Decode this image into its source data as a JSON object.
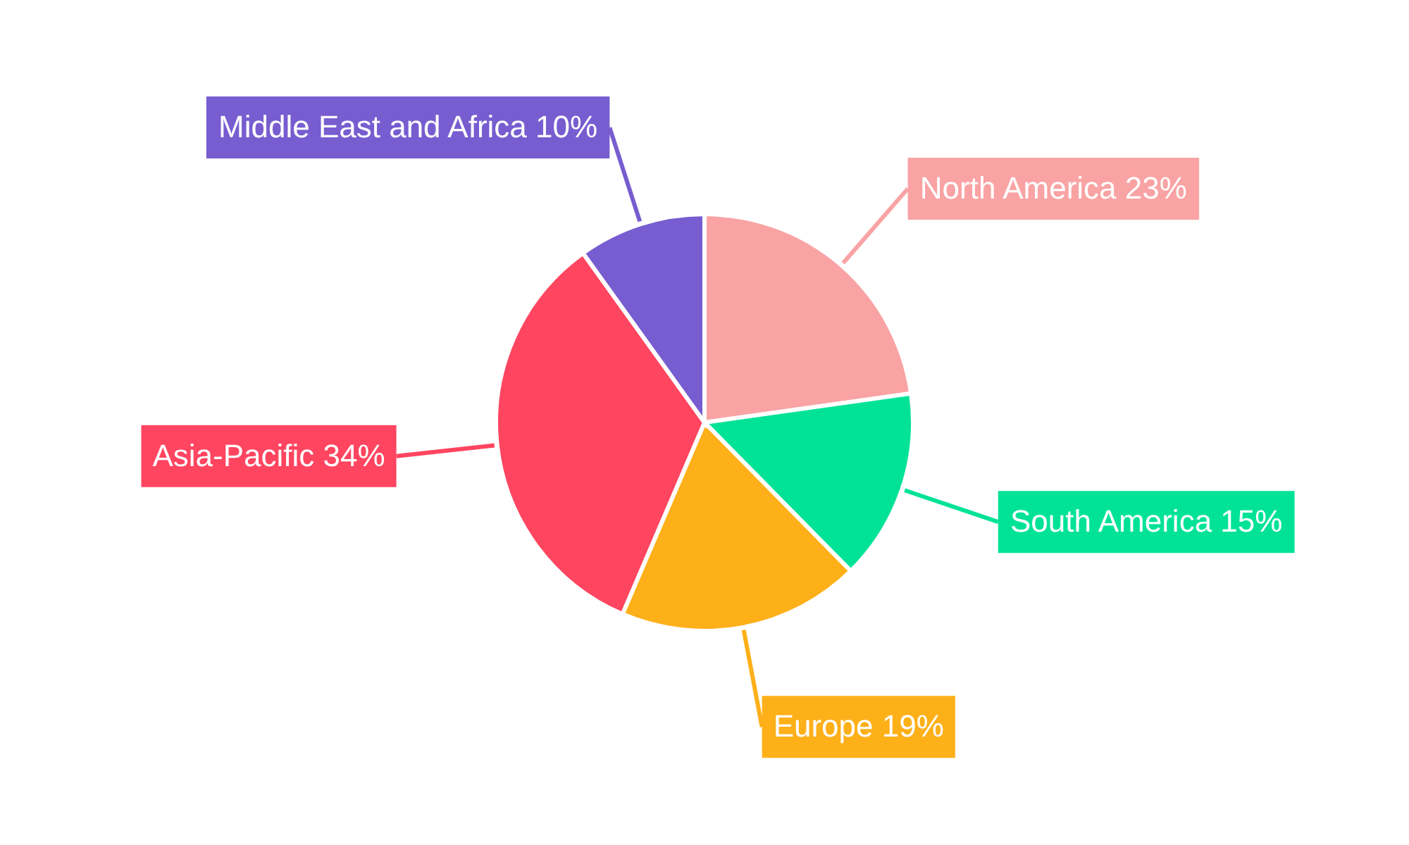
{
  "chart_data": {
    "type": "pie",
    "categories": [
      "North America",
      "South America",
      "Europe",
      "Asia-Pacific",
      "Middle East and Africa"
    ],
    "values": [
      23,
      15,
      19,
      34,
      10
    ],
    "value_labels": [
      "23%",
      "15%",
      "19%",
      "34%",
      "10%"
    ],
    "colors": [
      "#f9a3a4",
      "#00e396",
      "#feb019",
      "#ff4560",
      "#775dd0"
    ]
  }
}
